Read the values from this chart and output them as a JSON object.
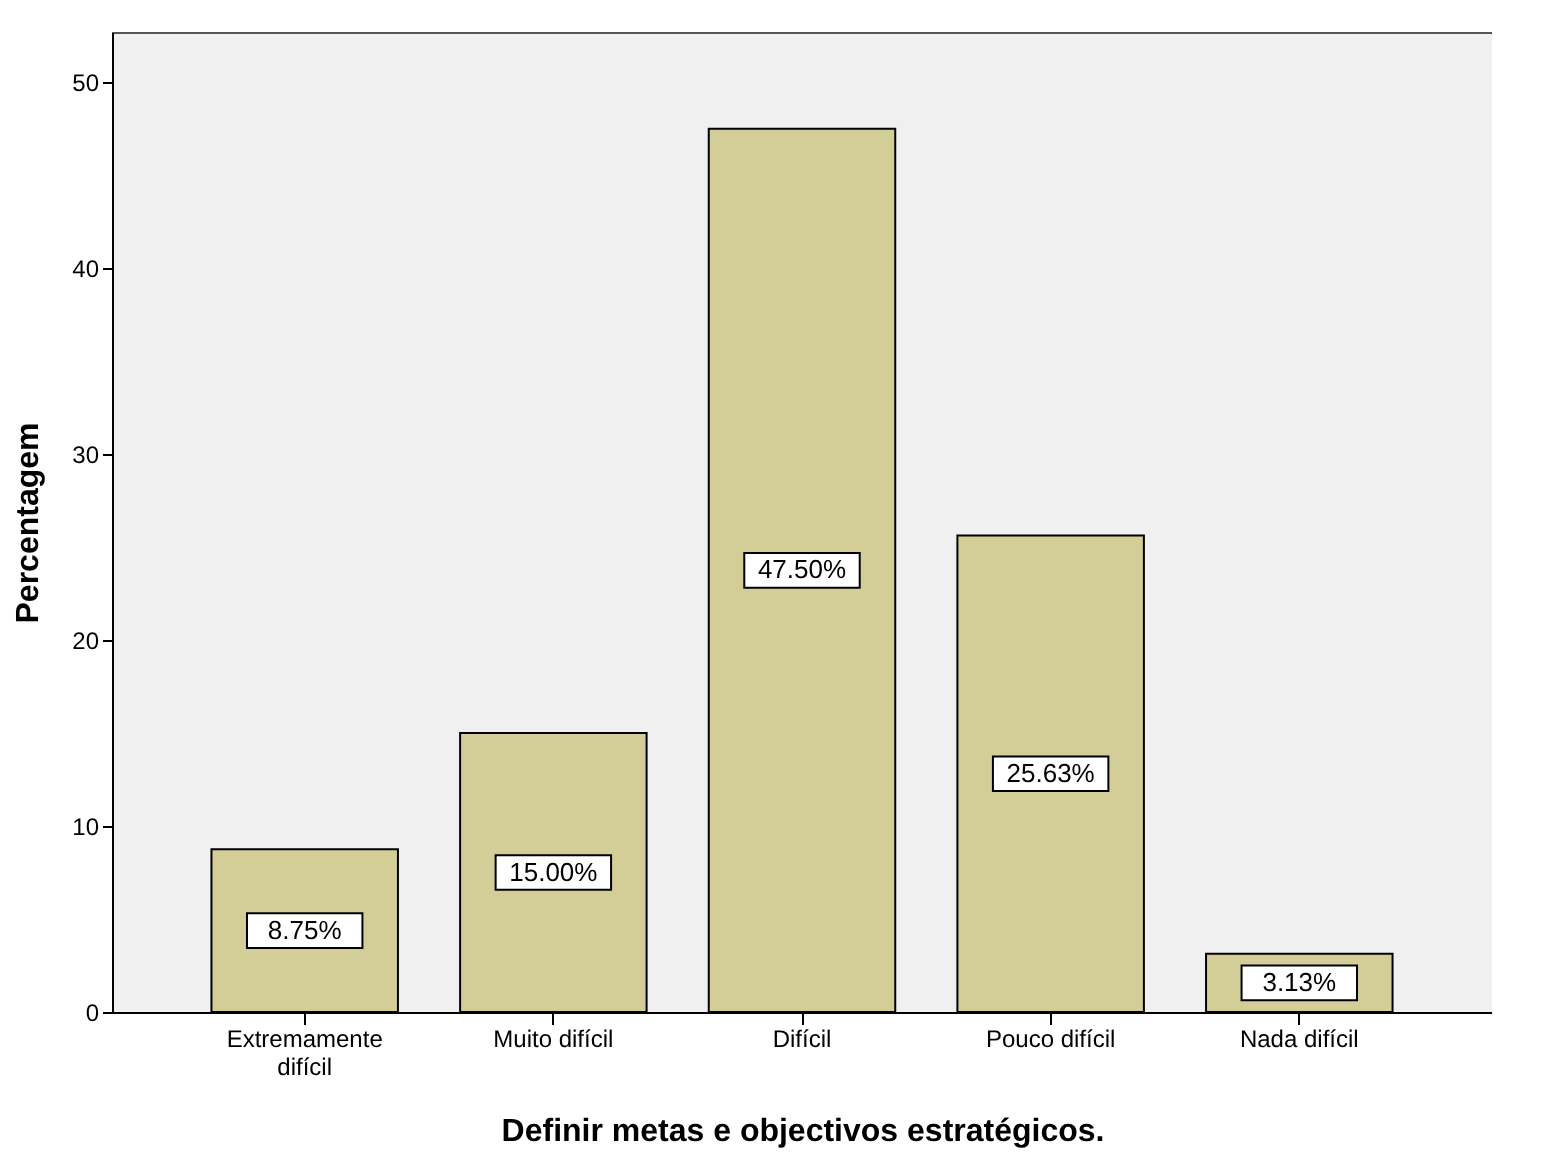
{
  "chart_data": {
    "type": "bar",
    "xlabel": "Definir metas e objectivos estratégicos.",
    "ylabel": "Percentagem",
    "categories": [
      "Extremamente difícil",
      "Muito difícil",
      "Difícil",
      "Pouco difícil",
      "Nada difícil"
    ],
    "values": [
      8.75,
      15.0,
      47.5,
      25.63,
      3.13
    ],
    "value_labels": [
      "8.75%",
      "15.00%",
      "47.50%",
      "25.63%",
      "3.13%"
    ],
    "color": "#d3ce97",
    "ylim": [
      0,
      52.7
    ],
    "yticks": [
      0,
      10,
      20,
      30,
      40,
      50
    ],
    "grid": false
  }
}
